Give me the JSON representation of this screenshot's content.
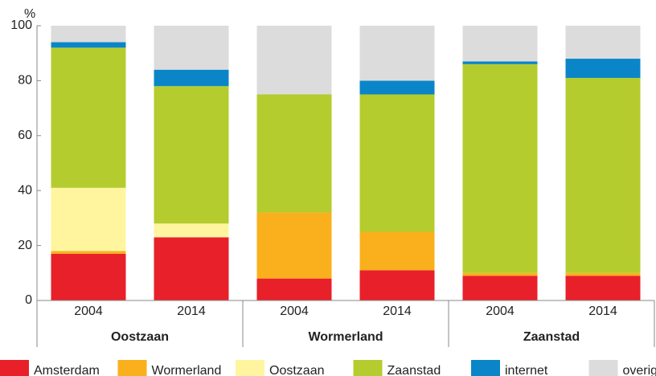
{
  "chart_data": {
    "type": "stacked_bar",
    "y_label": "%",
    "categories": [
      "2004",
      "2014",
      "2004",
      "2014",
      "2004",
      "2014"
    ],
    "groups": [
      "Oostzaan",
      "Wormerland",
      "Zaanstad"
    ],
    "ylim": [
      0,
      100
    ],
    "yticks": [
      0,
      20,
      40,
      60,
      80,
      100
    ],
    "grid": false,
    "legend": "bottom",
    "series": [
      {
        "name": "Amsterdam",
        "color": "#e8202a",
        "values": [
          17,
          23,
          8,
          11,
          9,
          9
        ]
      },
      {
        "name": "Wormerland",
        "color": "#f9b01c",
        "values": [
          1,
          0,
          24,
          14,
          1,
          1
        ]
      },
      {
        "name": "Oostzaan",
        "color": "#fff59e",
        "values": [
          23,
          5,
          0,
          0,
          0,
          0
        ]
      },
      {
        "name": "Zaanstad",
        "color": "#b5cc2e",
        "values": [
          51,
          50,
          43,
          50,
          76,
          71
        ]
      },
      {
        "name": "internet",
        "color": "#0a86c8",
        "values": [
          2,
          6,
          0,
          5,
          1,
          7
        ]
      },
      {
        "name": "overig",
        "color": "#dcdcdc",
        "values": [
          6,
          16,
          25,
          20,
          13,
          12
        ]
      }
    ]
  }
}
